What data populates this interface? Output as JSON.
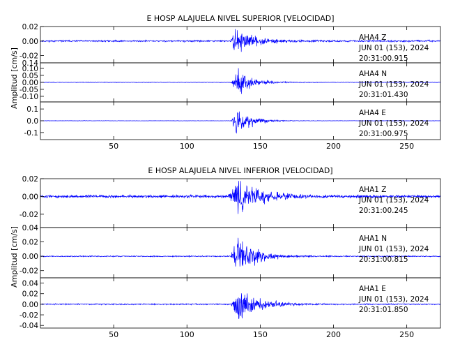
{
  "figures": [
    {
      "title": "E HOSP ALAJUELA NIVEL SUPERIOR [VELOCIDAD]",
      "ylabel": "Amplitud [cm/s]",
      "xlim": [
        0,
        273
      ],
      "xticks": [
        "50",
        "100",
        "150",
        "200",
        "250"
      ],
      "tick_values": [
        50,
        100,
        150,
        200,
        250
      ],
      "panels": [
        {
          "label": "AHA4 Z",
          "date": "JUN 01 (153), 2024",
          "time": "20:31:00.915",
          "ylim": [
            -0.03,
            0.02
          ],
          "yticks": [
            "0.02",
            "0.00",
            "-0.02"
          ],
          "ytick_values": [
            0.02,
            0.0,
            -0.02
          ],
          "trace": {
            "noise": 0.0012,
            "peak": 0.02,
            "event_start": 130,
            "event_peak": 133,
            "decay": 12,
            "seed": 11
          }
        },
        {
          "label": "AHA4 N",
          "date": "JUN 01 (153), 2024",
          "time": "20:31:01.430",
          "ylim": [
            -0.14,
            0.14
          ],
          "yticks": [
            "0.14",
            "0.10",
            "0.05",
            "0.00",
            "-0.05",
            "-0.10"
          ],
          "ytick_values": [
            0.14,
            0.1,
            0.05,
            0.0,
            -0.05,
            -0.1
          ],
          "trace": {
            "noise": 0.002,
            "peak": 0.1,
            "event_start": 130,
            "event_peak": 135,
            "decay": 10,
            "seed": 23
          }
        },
        {
          "label": "AHA4 E",
          "date": "JUN 01 (153), 2024",
          "time": "20:31:00.975",
          "ylim": [
            -0.16,
            0.16
          ],
          "yticks": [
            "0.1",
            "0.0",
            "-0.1"
          ],
          "ytick_values": [
            0.1,
            0.0,
            -0.1
          ],
          "trace": {
            "noise": 0.002,
            "peak": 0.14,
            "event_start": 130,
            "event_peak": 134,
            "decay": 9,
            "seed": 37
          }
        }
      ]
    },
    {
      "title": "E HOSP ALAJUELA NIVEL INFERIOR [VELOCIDAD]",
      "ylabel": "Amplitud [cm/s]",
      "xlim": [
        0,
        273
      ],
      "xticks": [
        "50",
        "100",
        "150",
        "200",
        "250"
      ],
      "tick_values": [
        50,
        100,
        150,
        200,
        250
      ],
      "panels": [
        {
          "label": "AHA1 Z",
          "date": "JUN 01 (153), 2024",
          "time": "20:31:00.245",
          "ylim": [
            -0.035,
            0.02
          ],
          "yticks": [
            "0.02",
            "0.00",
            "-0.02"
          ],
          "ytick_values": [
            0.02,
            0.0,
            -0.02
          ],
          "trace": {
            "noise": 0.0018,
            "peak": 0.022,
            "event_start": 128,
            "event_peak": 135,
            "decay": 14,
            "seed": 51
          }
        },
        {
          "label": "AHA1 N",
          "date": "JUN 01 (153), 2024",
          "time": "20:31:00.815",
          "ylim": [
            -0.03,
            0.04
          ],
          "yticks": [
            "0.04",
            "0.02",
            "0.00",
            "-0.02"
          ],
          "ytick_values": [
            0.04,
            0.02,
            0.0,
            -0.02
          ],
          "trace": {
            "noise": 0.0008,
            "peak": 0.035,
            "event_start": 130,
            "event_peak": 134,
            "decay": 12,
            "seed": 63
          }
        },
        {
          "label": "AHA1 E",
          "date": "JUN 01 (153), 2024",
          "time": "20:31:01.850",
          "ylim": [
            -0.045,
            0.05
          ],
          "yticks": [
            "0.04",
            "0.02",
            "0.00",
            "-0.02",
            "-0.04"
          ],
          "ytick_values": [
            0.04,
            0.02,
            0.0,
            -0.02,
            -0.04
          ],
          "trace": {
            "noise": 0.0012,
            "peak": 0.04,
            "event_start": 130,
            "event_peak": 136,
            "decay": 12,
            "seed": 77
          }
        }
      ]
    }
  ],
  "chart_data": [
    {
      "type": "line",
      "title": "E HOSP ALAJUELA NIVEL SUPERIOR [VELOCIDAD]",
      "ylabel": "Amplitud [cm/s]",
      "xlim": [
        0,
        273
      ],
      "series": [
        {
          "name": "AHA4 Z",
          "ylim": [
            -0.03,
            0.02
          ],
          "peak_time": 133,
          "peak_amplitude": 0.02
        },
        {
          "name": "AHA4 N",
          "ylim": [
            -0.14,
            0.14
          ],
          "peak_time": 135,
          "peak_amplitude": 0.1
        },
        {
          "name": "AHA4 E",
          "ylim": [
            -0.16,
            0.16
          ],
          "peak_time": 134,
          "peak_amplitude": 0.14
        }
      ],
      "grid": false
    },
    {
      "type": "line",
      "title": "E HOSP ALAJUELA NIVEL INFERIOR [VELOCIDAD]",
      "ylabel": "Amplitud [cm/s]",
      "xlim": [
        0,
        273
      ],
      "series": [
        {
          "name": "AHA1 Z",
          "ylim": [
            -0.035,
            0.02
          ],
          "peak_time": 135,
          "peak_amplitude": 0.022
        },
        {
          "name": "AHA1 N",
          "ylim": [
            -0.03,
            0.04
          ],
          "peak_time": 134,
          "peak_amplitude": 0.035
        },
        {
          "name": "AHA1 E",
          "ylim": [
            -0.045,
            0.05
          ],
          "peak_time": 136,
          "peak_amplitude": 0.04
        }
      ],
      "grid": false
    }
  ],
  "colors": {
    "trace": "#0000ff",
    "axis": "#000000",
    "background": "#ffffff"
  }
}
